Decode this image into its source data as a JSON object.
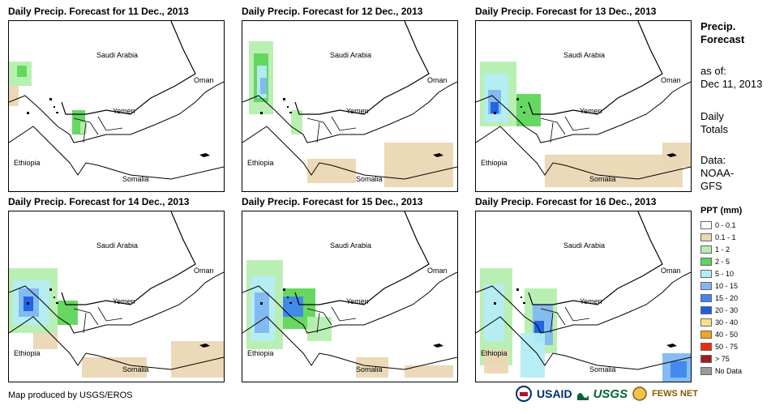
{
  "panels": [
    {
      "title": "Daily Precip. Forecast for 11 Dec., 2013"
    },
    {
      "title": "Daily Precip. Forecast for 12 Dec., 2013"
    },
    {
      "title": "Daily Precip. Forecast for 13 Dec., 2013"
    },
    {
      "title": "Daily Precip. Forecast for 14 Dec., 2013"
    },
    {
      "title": "Daily Precip. Forecast for 15 Dec., 2013"
    },
    {
      "title": "Daily Precip. Forecast for 16 Dec., 2013"
    }
  ],
  "map_labels": {
    "saudi": "Saudi Arabia",
    "oman": "Oman",
    "yemen": "Yemen",
    "ethiopia": "Ethiopia",
    "somalia": "Somalia"
  },
  "sidebar": {
    "title_line1": "Precip.",
    "title_line2": "Forecast",
    "asof_line1": "as of:",
    "asof_line2": "Dec 11, 2013",
    "daily_line1": "Daily",
    "daily_line2": "Totals",
    "data_line1": "Data:",
    "data_line2": "NOAA-",
    "data_line3": "GFS"
  },
  "legend": {
    "title": "PPT (mm)",
    "items": [
      {
        "label": "0 - 0.1",
        "color": "#ffffff"
      },
      {
        "label": "0.1 - 1",
        "color": "#ead7b4"
      },
      {
        "label": "1 - 2",
        "color": "#b6eeb0"
      },
      {
        "label": "2 - 5",
        "color": "#5ed65a"
      },
      {
        "label": "5 - 10",
        "color": "#b4ecf5"
      },
      {
        "label": "10 - 15",
        "color": "#7fb8f0"
      },
      {
        "label": "15 - 20",
        "color": "#3f86ef"
      },
      {
        "label": "20 - 30",
        "color": "#1c5fe0"
      },
      {
        "label": "30 - 40",
        "color": "#f6e08a"
      },
      {
        "label": "40 - 50",
        "color": "#f3a51e"
      },
      {
        "label": "50 - 75",
        "color": "#ee2a10"
      },
      {
        "label": "> 75",
        "color": "#a11b1b"
      },
      {
        "label": "No Data",
        "color": "#9a9a9a"
      }
    ]
  },
  "footer": {
    "credit": "Map produced by USGS/EROS"
  },
  "logos": {
    "usaid": "USAID",
    "usgs": "USGS",
    "fewsnet": "FEWS NET"
  }
}
